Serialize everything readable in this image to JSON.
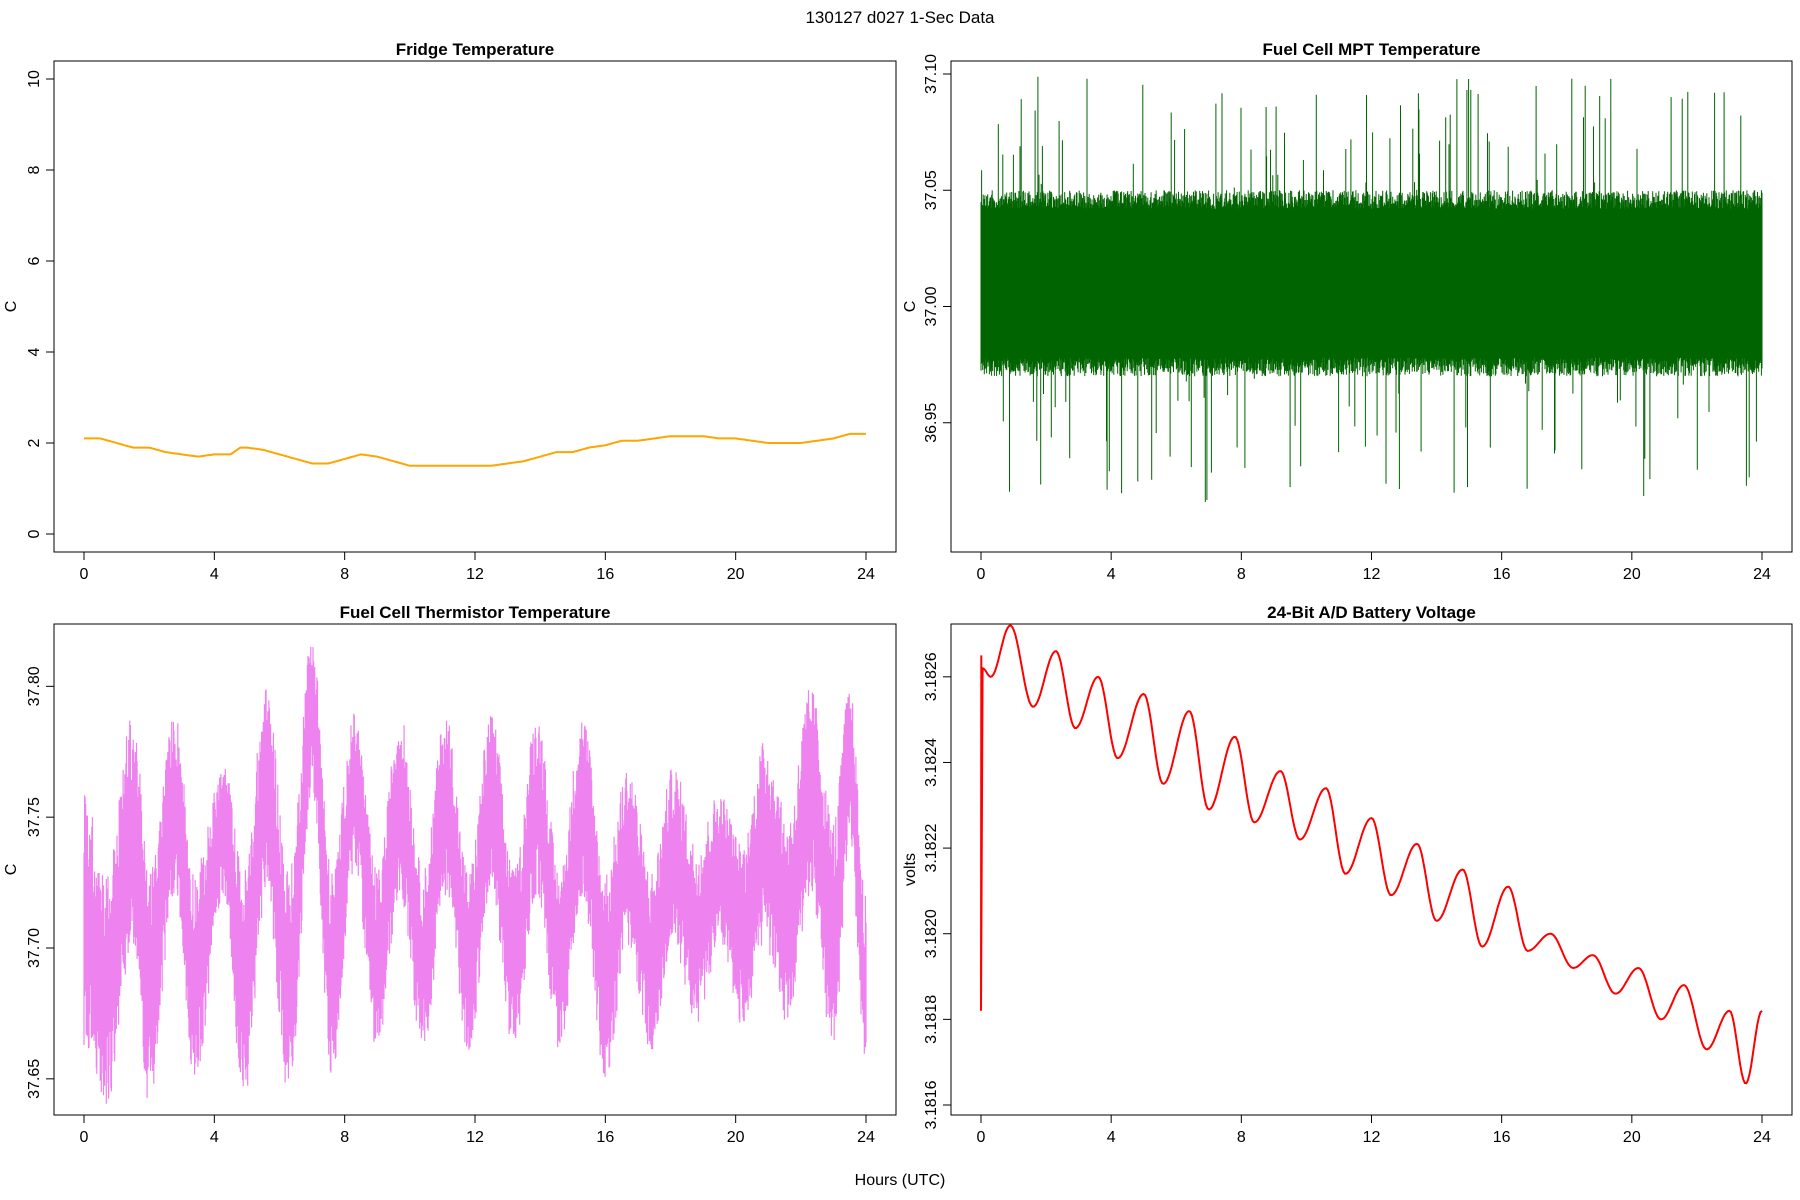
{
  "suptitle": "130127   d027   1-Sec Data",
  "xlabel": "Hours (UTC)",
  "chart_data": [
    {
      "type": "line",
      "title": "Fridge Temperature",
      "ylabel": "C",
      "color": "#FFA500",
      "xlim": [
        0,
        24
      ],
      "ylim": [
        0,
        10
      ],
      "xticks": [
        "0",
        "4",
        "8",
        "12",
        "16",
        "20",
        "24"
      ],
      "yticks": [
        "0",
        "2",
        "4",
        "6",
        "8",
        "10"
      ],
      "x": [
        0,
        0.5,
        1,
        1.5,
        2,
        2.5,
        3,
        3.5,
        4,
        4.5,
        4.8,
        5,
        5.5,
        6,
        6.5,
        7,
        7.5,
        8,
        8.5,
        9,
        9.5,
        10,
        10.5,
        11,
        11.5,
        12,
        12.5,
        13,
        13.5,
        14,
        14.5,
        15,
        15.5,
        16,
        16.5,
        17,
        17.5,
        18,
        18.5,
        19,
        19.5,
        20,
        20.5,
        21,
        21.5,
        22,
        22.5,
        23,
        23.5,
        24
      ],
      "y": [
        2.1,
        2.1,
        2.0,
        1.9,
        1.9,
        1.8,
        1.75,
        1.7,
        1.75,
        1.75,
        1.9,
        1.9,
        1.85,
        1.75,
        1.65,
        1.55,
        1.55,
        1.65,
        1.75,
        1.7,
        1.6,
        1.5,
        1.5,
        1.5,
        1.5,
        1.5,
        1.5,
        1.55,
        1.6,
        1.7,
        1.8,
        1.8,
        1.9,
        1.95,
        2.05,
        2.05,
        2.1,
        2.15,
        2.15,
        2.15,
        2.1,
        2.1,
        2.05,
        2.0,
        2.0,
        2.0,
        2.05,
        2.1,
        2.2,
        2.2
      ]
    },
    {
      "type": "line",
      "title": "Fuel Cell MPT Temperature",
      "ylabel": "C",
      "color": "#006400",
      "xlim": [
        0,
        24
      ],
      "ylim": [
        36.9,
        37.1
      ],
      "xticks": [
        "0",
        "4",
        "8",
        "12",
        "16",
        "20",
        "24"
      ],
      "yticks": [
        "36.95",
        "37.00",
        "37.05",
        "37.10"
      ],
      "noise_band": {
        "center": 37.01,
        "core_min": 36.97,
        "core_max": 37.05,
        "extreme_min": 36.915,
        "extreme_max": 37.1
      }
    },
    {
      "type": "line",
      "title": "Fuel Cell Thermistor Temperature",
      "ylabel": "C",
      "color": "#EE82EE",
      "xlim": [
        0,
        24
      ],
      "ylim": [
        37.64,
        37.82
      ],
      "xticks": [
        "0",
        "4",
        "8",
        "12",
        "16",
        "20",
        "24"
      ],
      "yticks": [
        "37.65",
        "37.70",
        "37.75",
        "37.80"
      ],
      "envelope": {
        "x": [
          0,
          0.7,
          1.5,
          2.0,
          2.8,
          3.4,
          4.3,
          4.9,
          5.6,
          6.3,
          7.0,
          7.6,
          8.3,
          9.0,
          9.7,
          10.4,
          11.1,
          11.8,
          12.5,
          13.2,
          13.9,
          14.6,
          15.3,
          16.0,
          16.7,
          17.4,
          18.1,
          18.8,
          19.5,
          20.2,
          20.9,
          21.6,
          22.3,
          23.0,
          23.5,
          24
        ],
        "low": [
          37.66,
          37.64,
          37.7,
          37.64,
          37.72,
          37.65,
          37.72,
          37.64,
          37.72,
          37.64,
          37.76,
          37.65,
          37.73,
          37.66,
          37.72,
          37.66,
          37.72,
          37.66,
          37.72,
          37.66,
          37.72,
          37.66,
          37.72,
          37.65,
          37.7,
          37.66,
          37.7,
          37.67,
          37.7,
          37.67,
          37.7,
          37.67,
          37.72,
          37.66,
          37.74,
          37.65
        ],
        "high": [
          37.76,
          37.73,
          37.79,
          37.73,
          37.79,
          37.73,
          37.77,
          37.73,
          37.8,
          37.73,
          37.82,
          37.73,
          37.79,
          37.73,
          37.79,
          37.73,
          37.79,
          37.73,
          37.79,
          37.73,
          37.79,
          37.73,
          37.79,
          37.73,
          37.77,
          37.73,
          37.77,
          37.74,
          37.76,
          37.74,
          37.78,
          37.75,
          37.8,
          37.75,
          37.8,
          37.72
        ]
      }
    },
    {
      "type": "line",
      "title": "24-Bit A/D Battery Voltage",
      "ylabel": "volts",
      "color": "#FF0000",
      "xlim": [
        0,
        24
      ],
      "ylim": [
        3.1816,
        3.1827
      ],
      "xticks": [
        "0",
        "4",
        "8",
        "12",
        "16",
        "20",
        "24"
      ],
      "yticks": [
        "3.1816",
        "3.1818",
        "3.1820",
        "3.1822",
        "3.1824",
        "3.1826"
      ],
      "x": [
        0,
        0.01,
        0.05,
        0.3,
        0.9,
        1.6,
        2.3,
        2.9,
        3.6,
        4.2,
        5.0,
        5.6,
        6.4,
        7.0,
        7.8,
        8.4,
        9.2,
        9.8,
        10.6,
        11.2,
        12.0,
        12.6,
        13.4,
        14.0,
        14.8,
        15.4,
        16.2,
        16.8,
        17.5,
        18.2,
        18.8,
        19.5,
        20.2,
        20.9,
        21.6,
        22.3,
        23.0,
        23.5,
        24
      ],
      "y": [
        3.18182,
        3.18265,
        3.18262,
        3.1826,
        3.18272,
        3.18253,
        3.18266,
        3.18248,
        3.1826,
        3.18241,
        3.18256,
        3.18235,
        3.18252,
        3.18229,
        3.18246,
        3.18226,
        3.18238,
        3.18222,
        3.18234,
        3.18214,
        3.18227,
        3.18209,
        3.18221,
        3.18203,
        3.18215,
        3.18197,
        3.18211,
        3.18196,
        3.182,
        3.18192,
        3.18195,
        3.18186,
        3.18192,
        3.1818,
        3.18188,
        3.18173,
        3.18182,
        3.18165,
        3.18182
      ]
    }
  ]
}
